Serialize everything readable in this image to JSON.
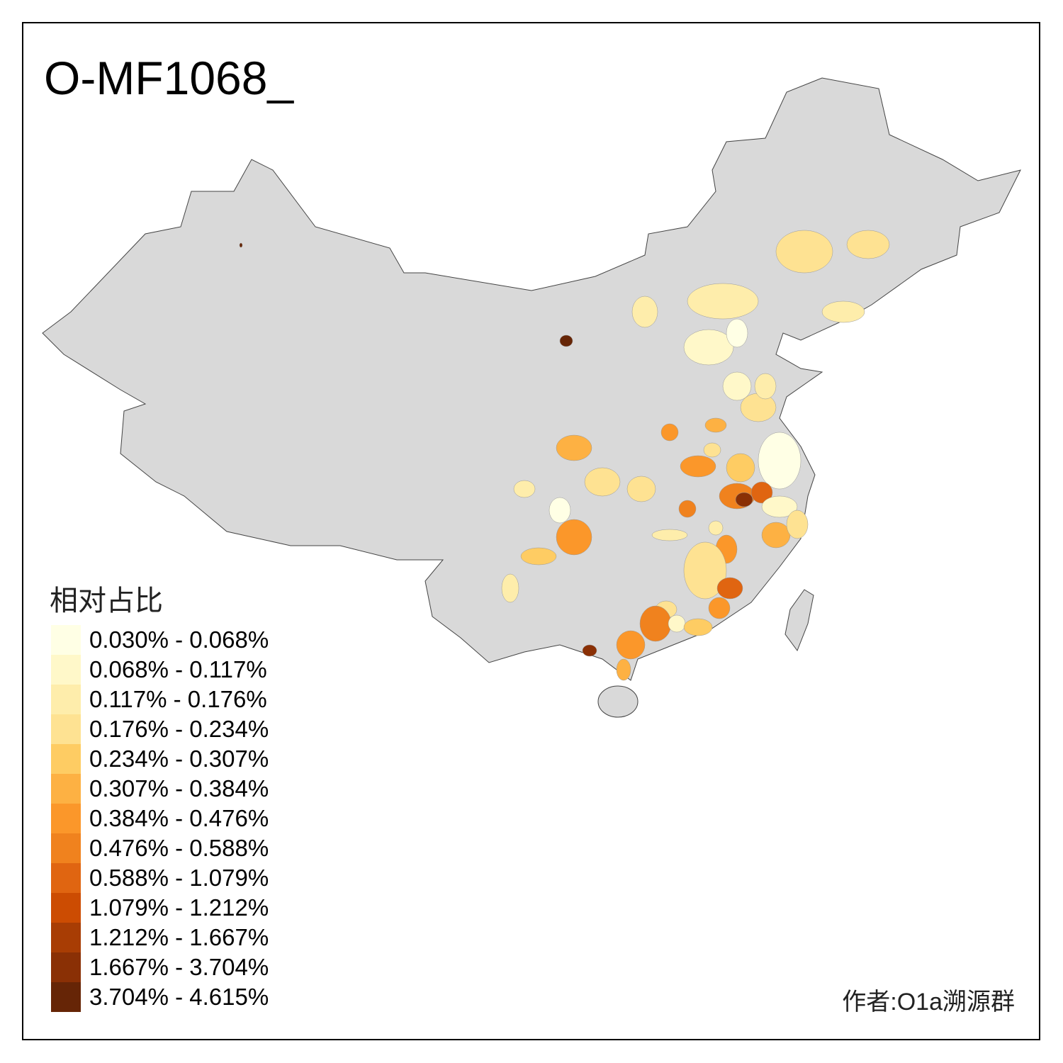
{
  "title": "O-MF1068_",
  "legend": {
    "title": "相对占比",
    "items": [
      {
        "label": "0.030% - 0.068%",
        "color": "#FFFFE5"
      },
      {
        "label": "0.068% - 0.117%",
        "color": "#FFF8C9"
      },
      {
        "label": "0.117% - 0.176%",
        "color": "#FEEDAB"
      },
      {
        "label": "0.176% - 0.234%",
        "color": "#FEE292"
      },
      {
        "label": "0.234% - 0.307%",
        "color": "#FECC63"
      },
      {
        "label": "0.307% - 0.384%",
        "color": "#FDB143"
      },
      {
        "label": "0.384% - 0.476%",
        "color": "#FB972A"
      },
      {
        "label": "0.476% - 0.588%",
        "color": "#F0821E"
      },
      {
        "label": "0.588% - 1.079%",
        "color": "#E06511"
      },
      {
        "label": "1.079% - 1.212%",
        "color": "#CC4C02"
      },
      {
        "label": "1.212% - 1.667%",
        "color": "#A83D04"
      },
      {
        "label": "1.667% - 3.704%",
        "color": "#8A3005"
      },
      {
        "label": "3.704% - 4.615%",
        "color": "#662506"
      }
    ]
  },
  "base_color": "#D9D9D9",
  "author": "作者:O1a溯源群"
}
